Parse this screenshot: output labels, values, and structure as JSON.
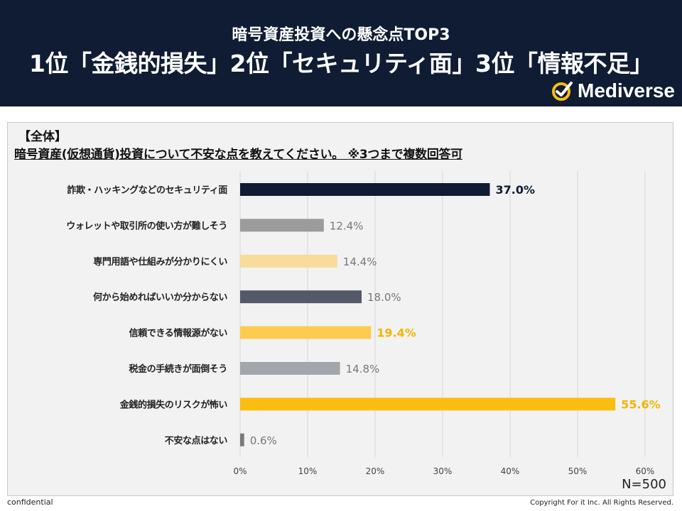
{
  "header": {
    "subtitle": "暗号資産投資への懸念点TOP3",
    "title": "1位「金銭的損失」2位「セキュリティ面」3位「情報不足」",
    "brand": "Mediverse",
    "brand_icon": "check-circle-logo-icon"
  },
  "question": {
    "tag": "【全体】",
    "text": "暗号資産(仮想通貨)投資について不安な点を教えてください。 ※3つまで複数回答可"
  },
  "chart_data": {
    "type": "bar",
    "orientation": "horizontal",
    "categories": [
      "詐欺・ハッキングなどのセキュリティ面",
      "ウォレットや取引所の使い方が難しそう",
      "専門用語や仕組みが分かりにくい",
      "何から始めればいいか分からない",
      "信頼できる情報源がない",
      "税金の手続きが面倒そう",
      "金銭的損失のリスクが怖い",
      "不安な点はない"
    ],
    "values": [
      37.0,
      12.4,
      14.4,
      18.0,
      19.4,
      14.8,
      55.6,
      0.6
    ],
    "value_labels": [
      "37.0%",
      "12.4%",
      "14.4%",
      "18.0%",
      "19.4%",
      "14.8%",
      "55.6%",
      "0.6%"
    ],
    "bar_colors": [
      "#0f1c33",
      "#9b9b9b",
      "#f7dc9a",
      "#54596a",
      "#fdcb50",
      "#a4a6ad",
      "#fbbd12",
      "#7a7a7a"
    ],
    "label_colors": [
      "#0f1c33",
      "#777777",
      "#777777",
      "#777777",
      "#f2b600",
      "#777777",
      "#f2b600",
      "#777777"
    ],
    "label_bold": [
      true,
      false,
      false,
      false,
      true,
      false,
      true,
      false
    ],
    "xlim": [
      0,
      60
    ],
    "xticks": [
      "0%",
      "10%",
      "20%",
      "30%",
      "40%",
      "50%",
      "60%"
    ],
    "grid": true,
    "n_label": "N=500"
  },
  "footer": {
    "confidential": "confidential",
    "copyright": "Copyright For it Inc. All Rights Reserved."
  }
}
